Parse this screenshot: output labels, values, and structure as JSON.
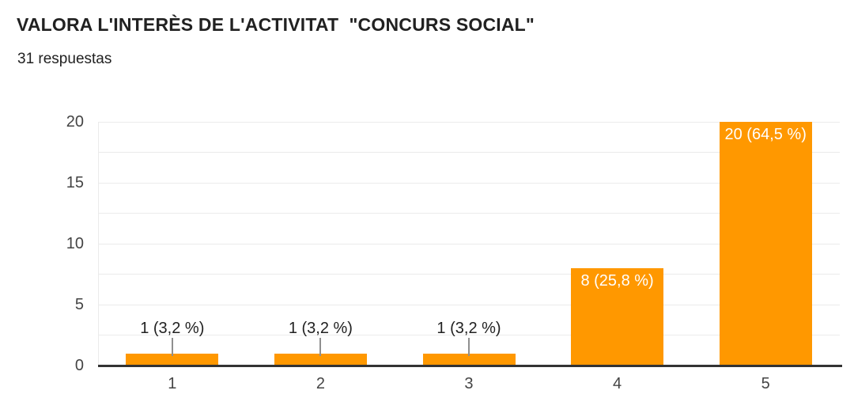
{
  "header": {
    "title": "VALORA L'INTERÈS DE L'ACTIVITAT  \"CONCURS SOCIAL\"",
    "responses_label": "31 respuestas"
  },
  "chart_data": {
    "type": "bar",
    "title": "VALORA L'INTERÈS DE L'ACTIVITAT  \"CONCURS SOCIAL\"",
    "subtitle": "31 respuestas",
    "total_responses": 31,
    "categories": [
      "1",
      "2",
      "3",
      "4",
      "5"
    ],
    "values": [
      1,
      1,
      1,
      8,
      20
    ],
    "bar_labels": [
      "1 (3,2 %)",
      "1 (3,2 %)",
      "1 (3,2 %)",
      "8 (25,8 %)",
      "20 (64,5 %)"
    ],
    "percentages": [
      3.2,
      3.2,
      3.2,
      25.8,
      64.5
    ],
    "xlabel": "",
    "ylabel": "",
    "ylim": [
      0,
      20
    ],
    "yticks": [
      0,
      5,
      10,
      15,
      20
    ],
    "grid_interval": 2.5,
    "grid_on": true,
    "legend_position": "none",
    "colors": {
      "bar": "#ff9800",
      "label_inside": "#ffffff",
      "label_outside": "#212121",
      "axis_text": "#444444",
      "gridline": "#ebebeb",
      "baseline": "#333333",
      "connector": "#8f8f8f",
      "background": "#ffffff"
    }
  }
}
